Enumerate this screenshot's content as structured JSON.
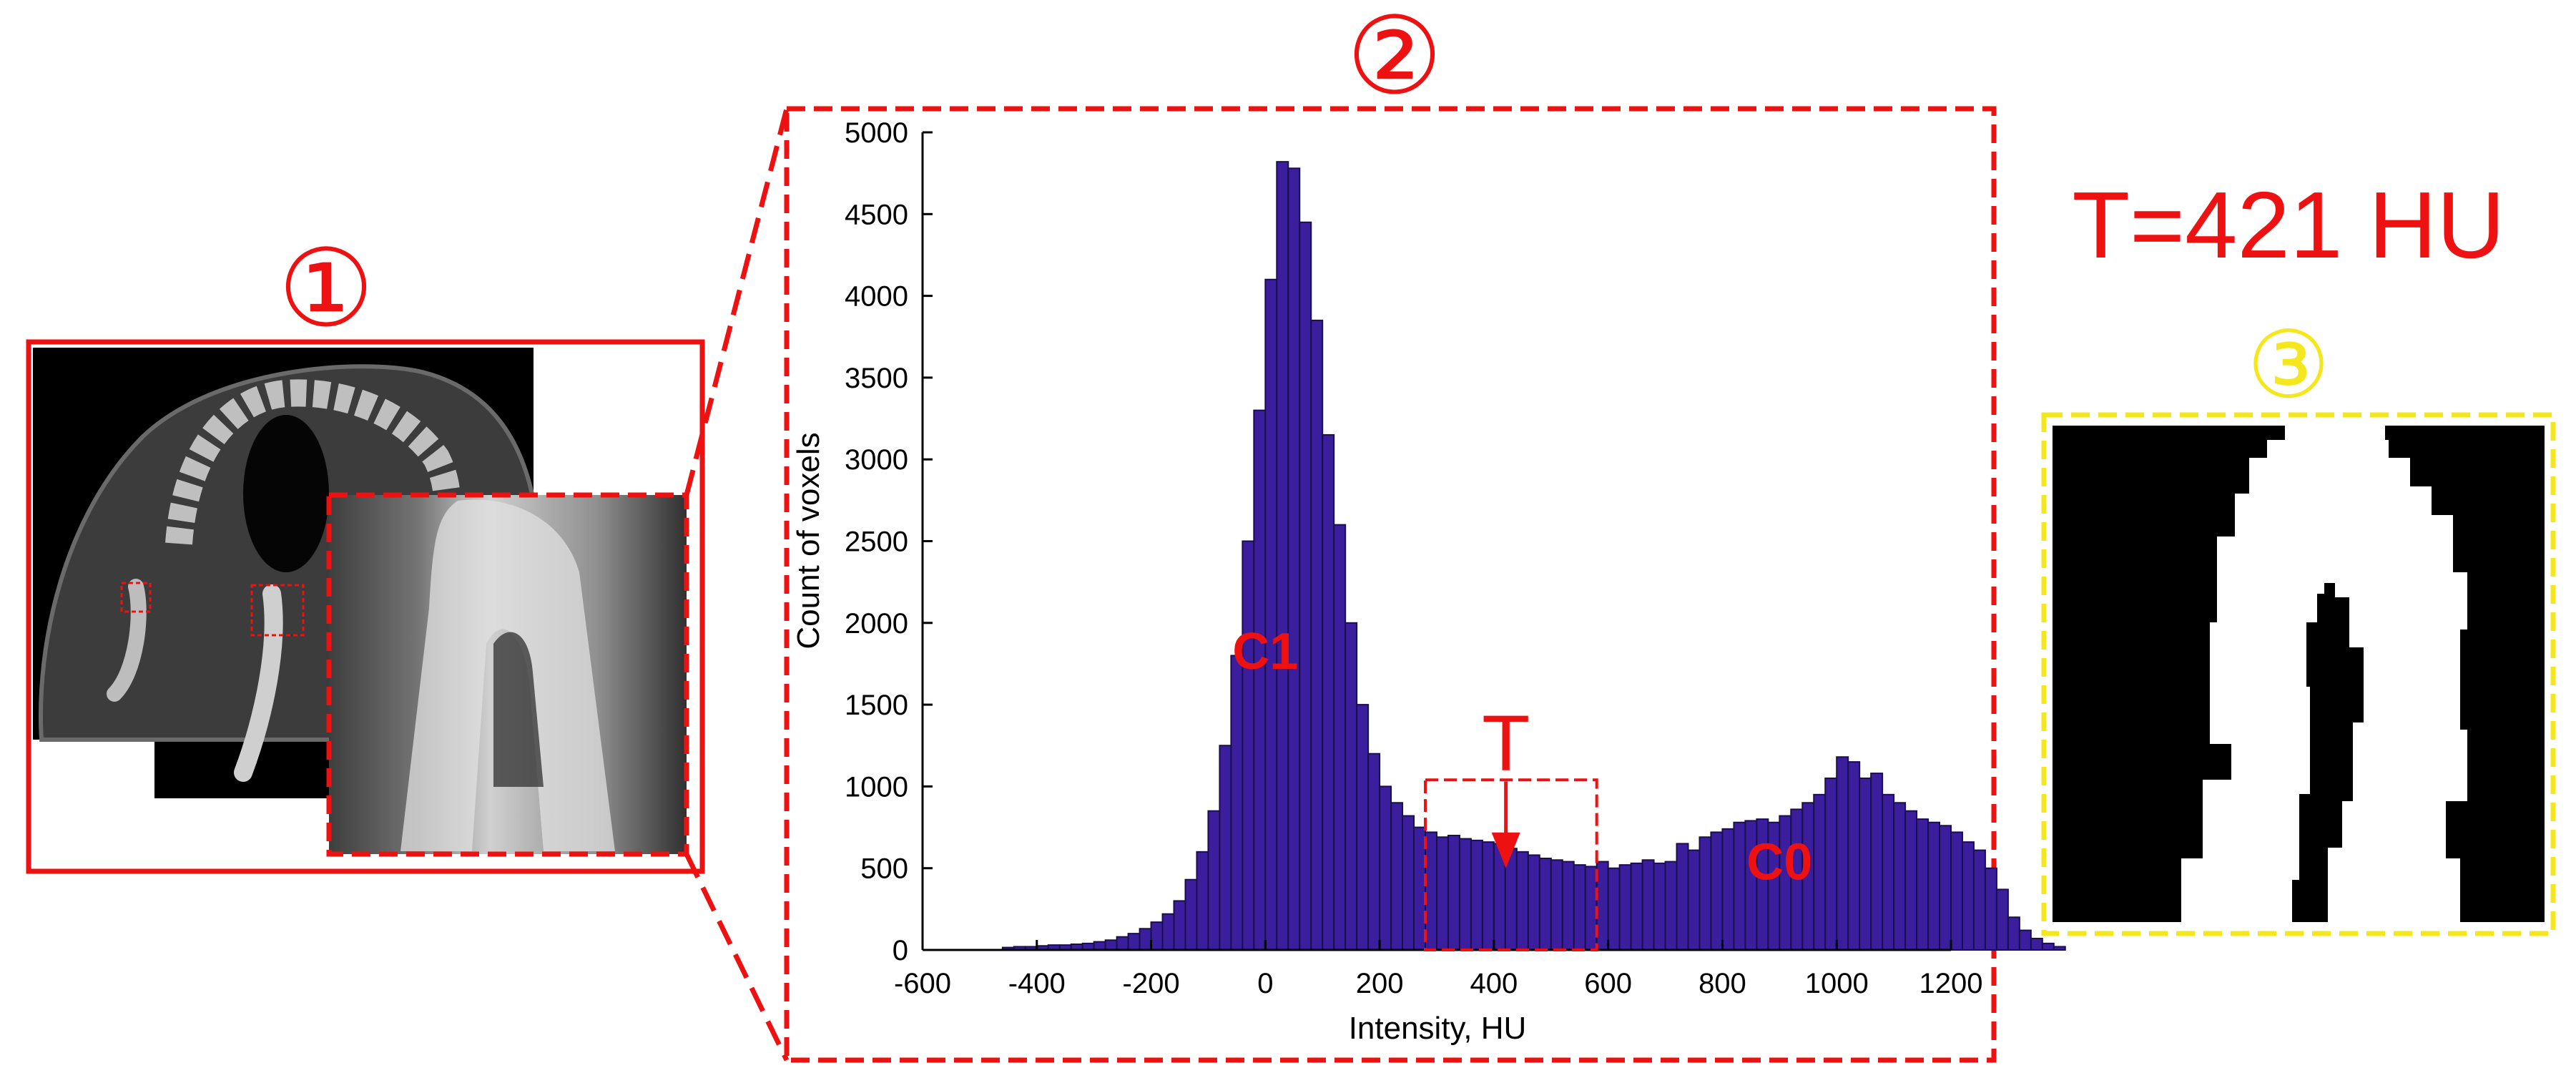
{
  "panels": {
    "panel1_label": "①",
    "panel2_label": "②",
    "panel3_label": "③"
  },
  "threshold_text": "T=421 HU",
  "colors": {
    "red": "#ee1111",
    "yellow": "#f5e71d",
    "bar_fill": "#3a1e9e",
    "bar_stroke": "#1a0f4a",
    "ct_bone": "#d8d8d8",
    "ct_tissue": "#555555"
  },
  "chart_data": {
    "type": "bar",
    "xlabel": "Intensity, HU",
    "ylabel": "Count of voxels",
    "xlim": [
      -600,
      1200
    ],
    "ylim": [
      0,
      5000
    ],
    "xticks": [
      -600,
      -400,
      -200,
      0,
      200,
      400,
      600,
      800,
      1000,
      1200
    ],
    "yticks": [
      0,
      500,
      1000,
      1500,
      2000,
      2500,
      3000,
      3500,
      4000,
      4500,
      5000
    ],
    "bin_width": 20,
    "bin_start": -460,
    "values": [
      15,
      20,
      20,
      25,
      30,
      30,
      35,
      40,
      50,
      60,
      80,
      100,
      130,
      170,
      220,
      300,
      430,
      600,
      850,
      1250,
      1800,
      2500,
      3300,
      4100,
      4820,
      4780,
      4450,
      3850,
      3150,
      2600,
      2000,
      1500,
      1200,
      1000,
      900,
      820,
      750,
      720,
      690,
      700,
      680,
      670,
      660,
      650,
      620,
      600,
      580,
      560,
      550,
      540,
      520,
      510,
      540,
      500,
      520,
      530,
      550,
      530,
      540,
      650,
      610,
      690,
      720,
      740,
      780,
      790,
      800,
      780,
      820,
      860,
      900,
      950,
      1050,
      1180,
      1150,
      1050,
      1080,
      950,
      900,
      850,
      800,
      780,
      760,
      720,
      660,
      610,
      500,
      370,
      200,
      120,
      70,
      40,
      20
    ],
    "annotations": {
      "c1": "C1",
      "c0": "C0",
      "t": "T",
      "t_box_x": [
        280,
        580
      ],
      "t_box_y": [
        0,
        1040
      ],
      "t_arrow_x": 421
    }
  }
}
